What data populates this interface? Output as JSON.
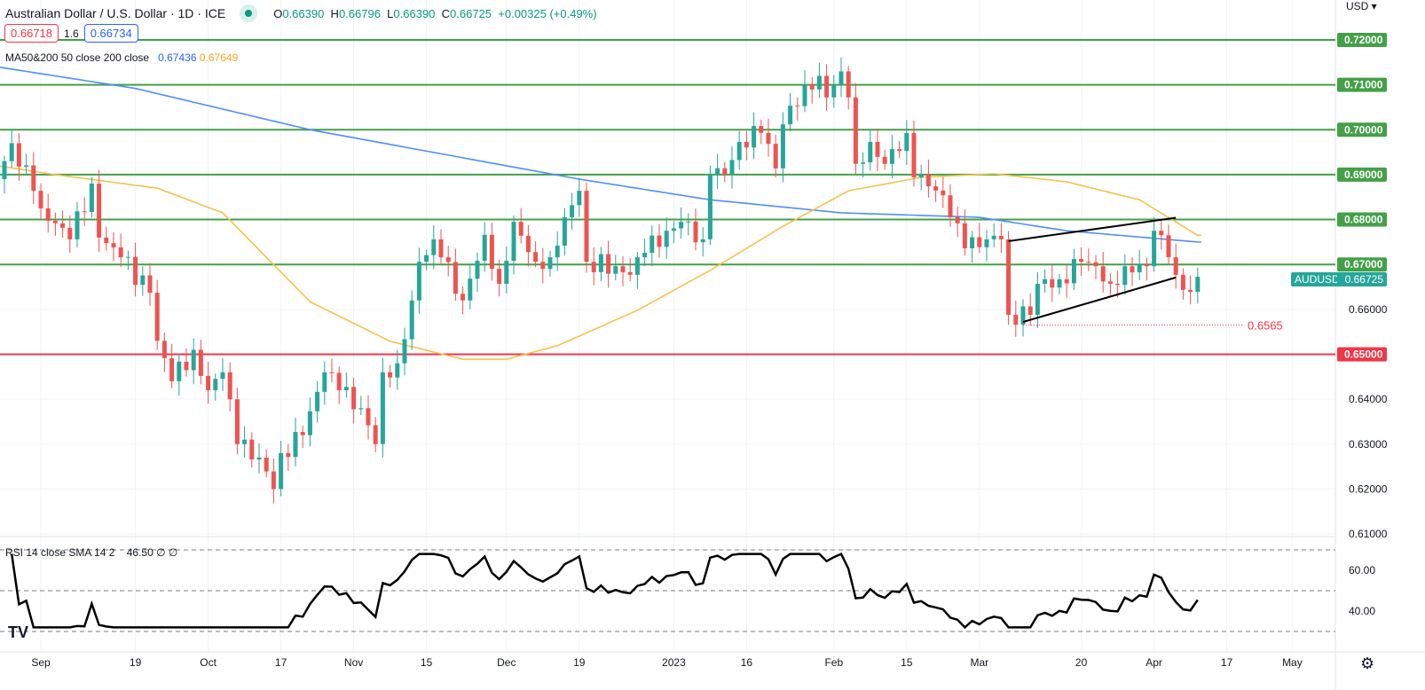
{
  "header": {
    "title": "Australian Dollar / U.S. Dollar · 1D · ICE",
    "o_label": "O",
    "o": "0.66390",
    "h_label": "H",
    "h": "0.66796",
    "l_label": "L",
    "l": "0.66390",
    "c_label": "C",
    "c": "0.66725",
    "change": "+0.00325 (+0.49%)",
    "bid": "0.66718",
    "spread": "1.6",
    "ask": "0.66734",
    "currency": "USD"
  },
  "ma": {
    "label": "MA50&200 50 close 200 close",
    "ma200_value": "0.67436",
    "ma50_value": "0.67649"
  },
  "rsi": {
    "label": "RSI 14 close SMA 14 2",
    "value": "46.50",
    "v2": "∅",
    "v3": "∅",
    "ticks": [
      "60.00",
      "40.00"
    ]
  },
  "colors": {
    "up": "#26a69a",
    "down": "#ef5350",
    "ma200": "#4e8ff6",
    "ma50": "#f5c24b",
    "support": "#43a047",
    "red_level": "#f23645"
  },
  "chart_data": {
    "type": "candlestick",
    "symbol": "AUDUSD",
    "last_price": "0.66725",
    "ylim": [
      0.61,
      0.72
    ],
    "y_ticks": [
      "0.72000",
      "0.71000",
      "0.70000",
      "0.69000",
      "0.68000",
      "0.67000",
      "0.66000",
      "0.65000",
      "0.64000",
      "0.63000",
      "0.62000",
      "0.61000"
    ],
    "x_ticks": [
      {
        "bar": 5,
        "label": "Sep"
      },
      {
        "bar": 18,
        "label": "19"
      },
      {
        "bar": 28,
        "label": "Oct"
      },
      {
        "bar": 38,
        "label": "17"
      },
      {
        "bar": 48,
        "label": "Nov"
      },
      {
        "bar": 58,
        "label": "15"
      },
      {
        "bar": 69,
        "label": "Dec"
      },
      {
        "bar": 79,
        "label": "19"
      },
      {
        "bar": 92,
        "label": "2023"
      },
      {
        "bar": 102,
        "label": "16"
      },
      {
        "bar": 114,
        "label": "Feb"
      },
      {
        "bar": 124,
        "label": "15"
      },
      {
        "bar": 134,
        "label": "Mar"
      },
      {
        "bar": 148,
        "label": "20"
      },
      {
        "bar": 158,
        "label": "Apr"
      },
      {
        "bar": 168,
        "label": "17"
      },
      {
        "bar": 177,
        "label": "May"
      }
    ],
    "close_keypoints": [
      [
        0,
        0.693
      ],
      [
        1,
        0.697
      ],
      [
        4,
        0.6864
      ],
      [
        5,
        0.6825
      ],
      [
        9,
        0.6756
      ],
      [
        12,
        0.688
      ],
      [
        13,
        0.676
      ],
      [
        16,
        0.6716
      ],
      [
        20,
        0.6637
      ],
      [
        21,
        0.653
      ],
      [
        23,
        0.644
      ],
      [
        26,
        0.651
      ],
      [
        28,
        0.642
      ],
      [
        30,
        0.646
      ],
      [
        32,
        0.63
      ],
      [
        35,
        0.627
      ],
      [
        37,
        0.62
      ],
      [
        38,
        0.628
      ],
      [
        41,
        0.632
      ],
      [
        44,
        0.646
      ],
      [
        46,
        0.642
      ],
      [
        49,
        0.638
      ],
      [
        51,
        0.63
      ],
      [
        52,
        0.646
      ],
      [
        54,
        0.648
      ],
      [
        56,
        0.662
      ],
      [
        57,
        0.6706
      ],
      [
        59,
        0.6756
      ],
      [
        60,
        0.6716
      ],
      [
        63,
        0.662
      ],
      [
        66,
        0.6766
      ],
      [
        68,
        0.6657
      ],
      [
        70,
        0.6795
      ],
      [
        73,
        0.6706
      ],
      [
        75,
        0.6716
      ],
      [
        77,
        0.6805
      ],
      [
        79,
        0.6864
      ],
      [
        80,
        0.6706
      ],
      [
        84,
        0.6696
      ],
      [
        86,
        0.6677
      ],
      [
        88,
        0.6726
      ],
      [
        91,
        0.6775
      ],
      [
        93,
        0.6795
      ],
      [
        96,
        0.6756
      ],
      [
        97,
        0.69
      ],
      [
        99,
        0.69
      ],
      [
        101,
        0.6973
      ],
      [
        104,
        0.6993
      ],
      [
        106,
        0.6914
      ],
      [
        107,
        0.7012
      ],
      [
        110,
        0.7101
      ],
      [
        112,
        0.712
      ],
      [
        113,
        0.7072
      ],
      [
        115,
        0.713
      ],
      [
        116,
        0.7072
      ],
      [
        117,
        0.6924
      ],
      [
        119,
        0.6973
      ],
      [
        121,
        0.6924
      ],
      [
        124,
        0.6993
      ],
      [
        125,
        0.6894
      ],
      [
        127,
        0.6874
      ],
      [
        129,
        0.6854
      ],
      [
        130,
        0.6805
      ],
      [
        132,
        0.6736
      ],
      [
        135,
        0.6756
      ],
      [
        137,
        0.6756
      ],
      [
        138,
        0.6588
      ],
      [
        141,
        0.6588
      ],
      [
        142,
        0.6657
      ],
      [
        145,
        0.6667
      ],
      [
        148,
        0.6706
      ],
      [
        150,
        0.6696
      ],
      [
        152,
        0.6657
      ],
      [
        154,
        0.6696
      ],
      [
        157,
        0.6696
      ],
      [
        158,
        0.6775
      ],
      [
        160,
        0.6716
      ],
      [
        161,
        0.6677
      ],
      [
        163,
        0.6639
      ],
      [
        164,
        0.66725
      ]
    ],
    "ma200_keypoints": [
      [
        -1,
        0.714
      ],
      [
        18,
        0.7092
      ],
      [
        42,
        0.7
      ],
      [
        79,
        0.689
      ],
      [
        97,
        0.6844
      ],
      [
        115,
        0.6815
      ],
      [
        134,
        0.6805
      ],
      [
        146,
        0.6775
      ],
      [
        164,
        0.675
      ]
    ],
    "ma50_keypoints": [
      [
        -1,
        0.692
      ],
      [
        7,
        0.69
      ],
      [
        21,
        0.687
      ],
      [
        30,
        0.6815
      ],
      [
        42,
        0.6617
      ],
      [
        53,
        0.6529
      ],
      [
        63,
        0.6489
      ],
      [
        69,
        0.6489
      ],
      [
        76,
        0.6519
      ],
      [
        87,
        0.6598
      ],
      [
        97,
        0.6687
      ],
      [
        107,
        0.6785
      ],
      [
        116,
        0.6864
      ],
      [
        126,
        0.6894
      ],
      [
        136,
        0.6902
      ],
      [
        146,
        0.6884
      ],
      [
        156,
        0.6844
      ],
      [
        164,
        0.6765
      ]
    ],
    "horizontal_levels": [
      {
        "price": 0.72,
        "label": "0.72000",
        "color": "green"
      },
      {
        "price": 0.71,
        "label": "0.71000",
        "color": "green"
      },
      {
        "price": 0.7,
        "label": "0.70000",
        "color": "green"
      },
      {
        "price": 0.69,
        "label": "0.69000",
        "color": "green"
      },
      {
        "price": 0.68,
        "label": "0.68000",
        "color": "green"
      },
      {
        "price": 0.67,
        "label": "0.67000",
        "color": "green"
      },
      {
        "price": 0.65,
        "label": "0.65000",
        "color": "red"
      }
    ],
    "trendlines": [
      {
        "from": [
          138,
          0.6752
        ],
        "to": [
          161,
          0.6804
        ]
      },
      {
        "from": [
          140,
          0.6572
        ],
        "to": [
          161,
          0.6671
        ]
      }
    ],
    "support_annotation": {
      "price": 0.6565,
      "label": "0.6565",
      "from_bar": 140
    }
  }
}
